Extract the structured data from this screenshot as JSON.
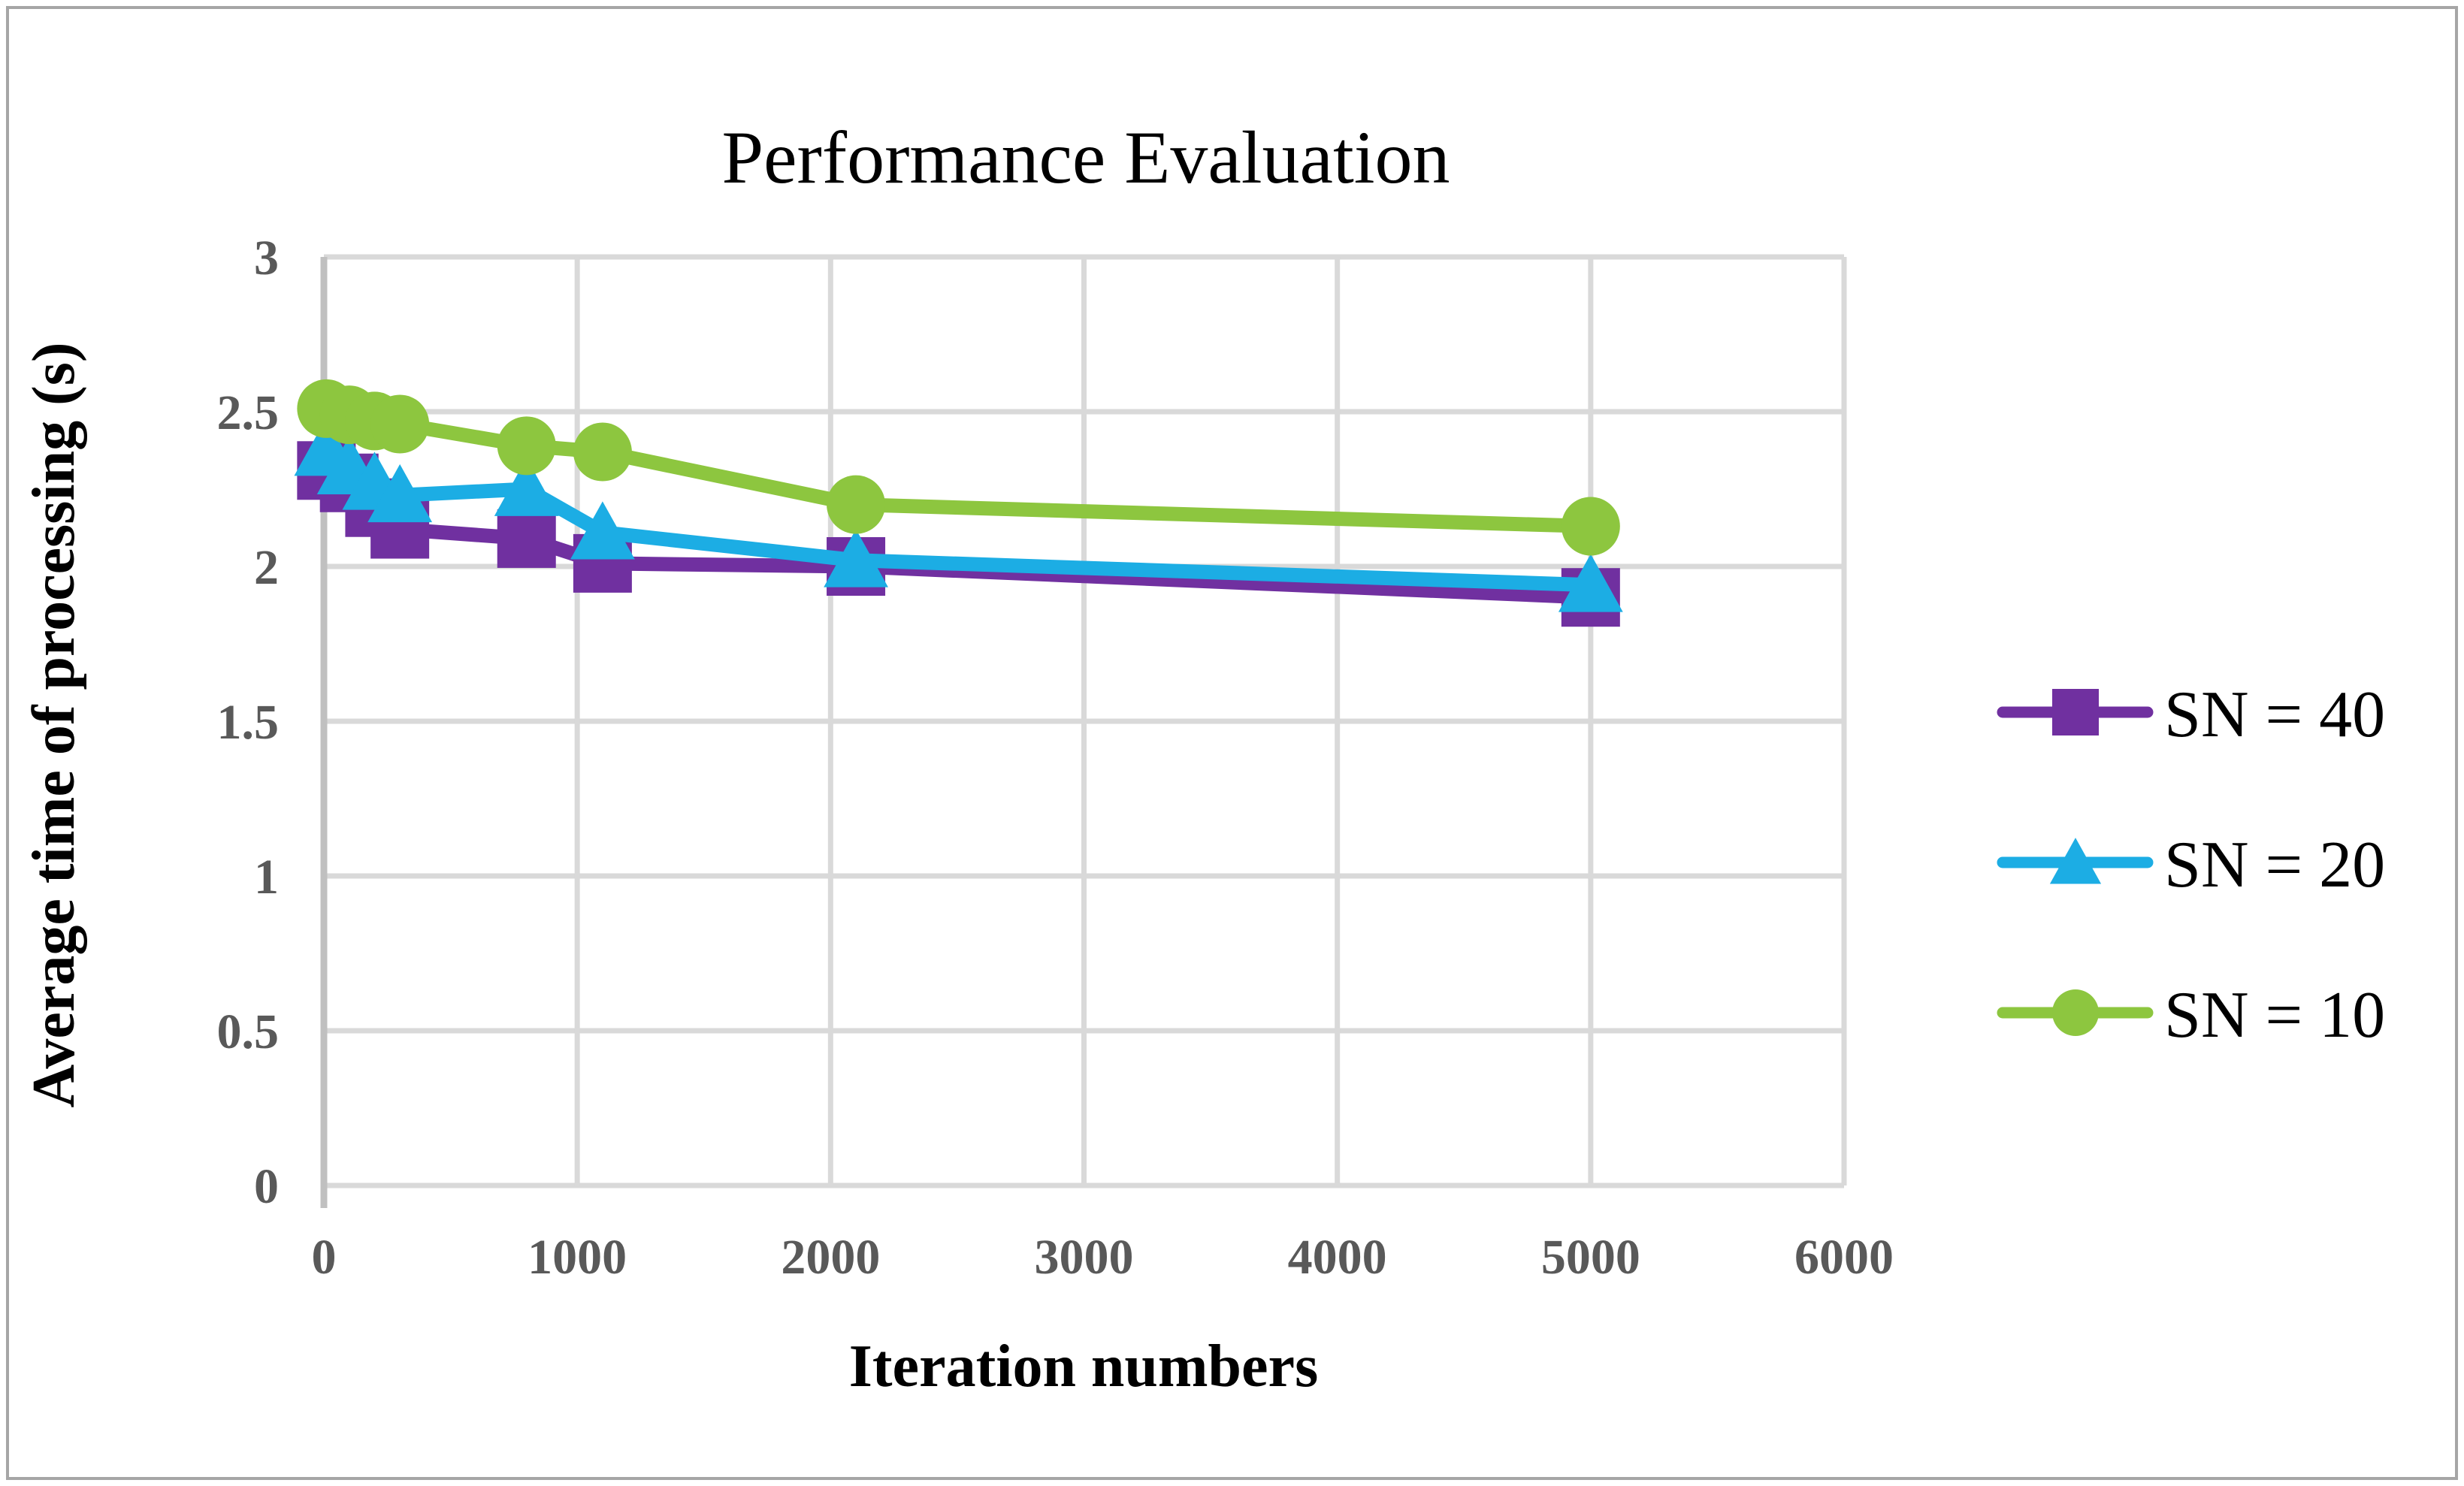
{
  "figure": {
    "background": "#FFFFFF",
    "border_color": "#A6A6A6"
  },
  "chart_data": {
    "type": "line",
    "title": "Performance Evaluation",
    "xlabel": "Iteration numbers",
    "ylabel": "Average time of processing (s)",
    "xlim": [
      0,
      6000
    ],
    "ylim": [
      0,
      3
    ],
    "x_ticks": [
      0,
      1000,
      2000,
      3000,
      4000,
      5000,
      6000
    ],
    "y_ticks": [
      0,
      0.5,
      1,
      1.5,
      2,
      2.5,
      3
    ],
    "grid": true,
    "legend_position": "right-outside",
    "x": [
      10,
      100,
      200,
      300,
      800,
      1100,
      2100,
      5000
    ],
    "series": [
      {
        "name": "SN = 40",
        "marker": "square",
        "color": "#7030A0",
        "values": [
          2.31,
          2.27,
          2.19,
          2.12,
          2.09,
          2.01,
          2.0,
          1.9
        ]
      },
      {
        "name": "SN = 20",
        "marker": "triangle",
        "color": "#1CADE4",
        "values": [
          2.38,
          2.32,
          2.27,
          2.23,
          2.25,
          2.11,
          2.02,
          1.94
        ]
      },
      {
        "name": "SN = 10",
        "marker": "circle",
        "color": "#8DC63F",
        "values": [
          2.51,
          2.49,
          2.47,
          2.46,
          2.39,
          2.37,
          2.2,
          2.13
        ]
      }
    ],
    "style": {
      "gridline_color": "#D9D9D9",
      "axis_color": "#C0C0C0",
      "tick_label_color": "#595959",
      "text_color": "#000000"
    }
  }
}
